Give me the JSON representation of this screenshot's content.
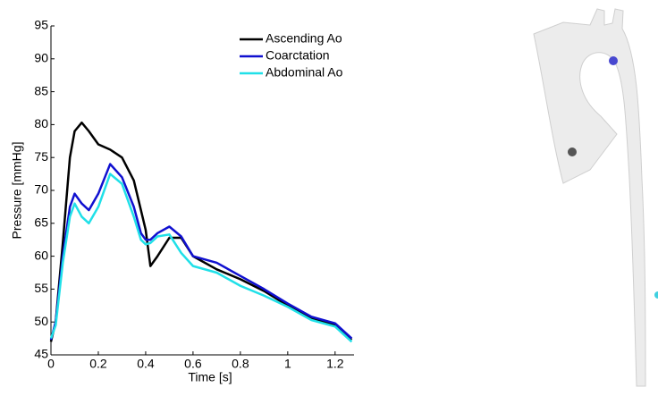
{
  "chart_data": {
    "type": "line",
    "xlabel": "Time [s]",
    "ylabel": "Pressure [mmHg]",
    "x": [
      0,
      0.02,
      0.05,
      0.08,
      0.1,
      0.13,
      0.16,
      0.2,
      0.25,
      0.3,
      0.35,
      0.38,
      0.4,
      0.42,
      0.45,
      0.5,
      0.55,
      0.6,
      0.7,
      0.8,
      0.9,
      1.0,
      1.1,
      1.2,
      1.27
    ],
    "series": [
      {
        "name": "Ascending Ao",
        "color": "#000000",
        "values": [
          47,
          50,
          62,
          75,
          79,
          80.3,
          79,
          77,
          76.2,
          75,
          71.5,
          67,
          64,
          58.5,
          60,
          62.8,
          62.8,
          60,
          58,
          56.5,
          54.7,
          52.5,
          50.5,
          49.5,
          47.3
        ]
      },
      {
        "name": "Coarctation",
        "color": "#1010d0",
        "values": [
          47.3,
          50,
          60,
          67.5,
          69.5,
          68,
          67,
          69.5,
          74,
          72,
          67.5,
          63.5,
          62.5,
          62.5,
          63.5,
          64.5,
          63,
          60,
          59,
          57,
          55,
          52.8,
          50.8,
          49.8,
          47.5
        ]
      },
      {
        "name": "Abdominal Ao",
        "color": "#20e0e8",
        "values": [
          47.5,
          49.5,
          59,
          66,
          68,
          66,
          65,
          67.5,
          72.5,
          71,
          66,
          62.5,
          61.8,
          62,
          63,
          63.3,
          60.5,
          58.5,
          57.5,
          55.5,
          54,
          52.3,
          50.3,
          49.3,
          47
        ]
      }
    ],
    "xlim": [
      0,
      1.28
    ],
    "xticks": [
      0,
      0.2,
      0.4,
      0.6,
      0.8,
      1,
      1.2
    ],
    "ylim": [
      45,
      95
    ],
    "yticks": [
      45,
      50,
      55,
      60,
      65,
      70,
      75,
      80,
      85,
      90,
      95
    ],
    "legend": "upper right"
  }
}
